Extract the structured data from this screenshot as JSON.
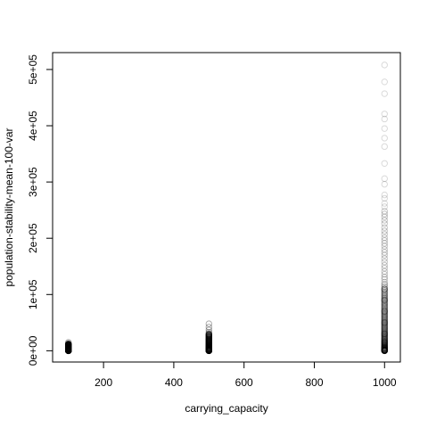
{
  "chart_data": {
    "type": "scatter",
    "xlabel": "carrying_capacity",
    "ylabel": "population-stability-mean-100-var",
    "xlim": [
      55,
      1045
    ],
    "ylim": [
      -20000,
      530000
    ],
    "x_ticks": [
      200,
      400,
      600,
      800,
      1000
    ],
    "x_tick_labels": [
      "200",
      "400",
      "600",
      "800",
      "1000"
    ],
    "y_ticks": [
      0,
      100000,
      200000,
      300000,
      400000,
      500000
    ],
    "y_tick_labels": [
      "0e+00",
      "1e+05",
      "2e+05",
      "3e+05",
      "4e+05",
      "5e+05"
    ],
    "marker": "open-circle",
    "marker_color": "#000000",
    "grid": false,
    "groups": [
      {
        "x": 100,
        "dense_range": [
          0,
          12000
        ],
        "y": [
          15000,
          13000,
          11000,
          9500,
          8000,
          6500,
          5000,
          3500,
          2000,
          800,
          200,
          12000,
          10000,
          7000,
          4000,
          1000
        ]
      },
      {
        "x": 500,
        "dense_range": [
          0,
          30000
        ],
        "y": [
          48000,
          42000,
          37000,
          33000,
          30000,
          27000,
          24000,
          21000,
          18000,
          15000,
          12000,
          9000,
          6000,
          3000,
          500
        ]
      },
      {
        "x": 1000,
        "dense_range": [
          0,
          110000
        ],
        "y": [
          508000,
          478000,
          457000,
          421000,
          412000,
          395000,
          378000,
          363000,
          333000,
          306000,
          296000,
          277000,
          271000,
          262000,
          256000,
          248000,
          243000,
          238000,
          232000,
          226000,
          219000,
          213000,
          207000,
          201000,
          196000,
          191000,
          186000,
          180000,
          175000,
          170000,
          164000,
          158000,
          152000,
          147000,
          141000,
          136000,
          131000,
          127000,
          122000,
          118000,
          114000,
          110000,
          90000,
          70000,
          50000,
          30000,
          15000,
          5000,
          1000
        ]
      }
    ]
  }
}
